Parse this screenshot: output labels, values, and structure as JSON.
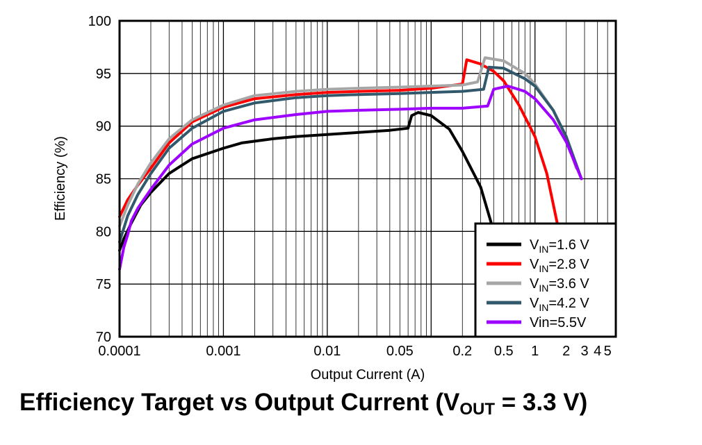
{
  "chart_data": {
    "type": "line",
    "xlabel": "Output Current (A)",
    "ylabel": "Efficiency (%)",
    "x_scale": "log",
    "xlim": [
      0.0001,
      6
    ],
    "ylim": [
      70,
      100
    ],
    "grid": true,
    "legend_placement": "bottom-right",
    "x_tick_labels": [
      {
        "value": 0.0001,
        "label": "0.0001"
      },
      {
        "value": 0.001,
        "label": "0.001"
      },
      {
        "value": 0.01,
        "label": "0.01"
      },
      {
        "value": 0.05,
        "label": "0.05"
      },
      {
        "value": 0.2,
        "label": "0.2"
      },
      {
        "value": 0.5,
        "label": "0.5"
      },
      {
        "value": 1,
        "label": "1"
      },
      {
        "value": 2,
        "label": "2"
      },
      {
        "value": 3,
        "label": "3"
      },
      {
        "value": 4,
        "label": "4"
      },
      {
        "value": 5,
        "label": "5"
      }
    ],
    "y_tick_labels": [
      "70",
      "75",
      "80",
      "85",
      "90",
      "95",
      "100"
    ],
    "y_ticks": [
      70,
      75,
      80,
      85,
      90,
      95,
      100
    ],
    "series": [
      {
        "name": "VIN=1.6 V",
        "legend": {
          "main": "V",
          "sub": "IN",
          "rest": "=1.6 V"
        },
        "color": "#000000",
        "points": [
          [
            0.0001,
            78.2
          ],
          [
            0.00011,
            79.3
          ],
          [
            0.00013,
            80.8
          ],
          [
            0.00016,
            82.5
          ],
          [
            0.0002,
            83.7
          ],
          [
            0.0003,
            85.5
          ],
          [
            0.0005,
            86.9
          ],
          [
            0.001,
            87.9
          ],
          [
            0.0015,
            88.4
          ],
          [
            0.003,
            88.8
          ],
          [
            0.005,
            89.0
          ],
          [
            0.01,
            89.2
          ],
          [
            0.02,
            89.4
          ],
          [
            0.04,
            89.6
          ],
          [
            0.06,
            89.8
          ],
          [
            0.065,
            91.0
          ],
          [
            0.075,
            91.3
          ],
          [
            0.1,
            91.0
          ],
          [
            0.15,
            89.7
          ],
          [
            0.2,
            87.6
          ],
          [
            0.3,
            84.2
          ],
          [
            0.4,
            80.0
          ]
        ]
      },
      {
        "name": "VIN=2.8 V",
        "legend": {
          "main": "V",
          "sub": "IN",
          "rest": "=2.8 V"
        },
        "color": "#ff0000",
        "points": [
          [
            0.0001,
            81.4
          ],
          [
            0.00012,
            83.0
          ],
          [
            0.00015,
            84.4
          ],
          [
            0.0002,
            86.0
          ],
          [
            0.0003,
            88.4
          ],
          [
            0.0005,
            90.4
          ],
          [
            0.001,
            91.8
          ],
          [
            0.002,
            92.6
          ],
          [
            0.005,
            93.0
          ],
          [
            0.01,
            93.2
          ],
          [
            0.02,
            93.3
          ],
          [
            0.05,
            93.4
          ],
          [
            0.1,
            93.6
          ],
          [
            0.2,
            94.0
          ],
          [
            0.22,
            96.3
          ],
          [
            0.3,
            95.9
          ],
          [
            0.4,
            95.2
          ],
          [
            0.5,
            94.3
          ],
          [
            0.7,
            92.0
          ],
          [
            1.0,
            89.0
          ],
          [
            1.3,
            85.5
          ],
          [
            1.7,
            80.0
          ]
        ]
      },
      {
        "name": "VIN=3.6 V",
        "legend": {
          "main": "V",
          "sub": "IN",
          "rest": "=3.6 V"
        },
        "color": "#a6a6a6",
        "points": [
          [
            0.0001,
            80.5
          ],
          [
            0.00012,
            82.5
          ],
          [
            0.00015,
            84.5
          ],
          [
            0.0002,
            86.5
          ],
          [
            0.0003,
            88.8
          ],
          [
            0.0005,
            90.6
          ],
          [
            0.001,
            92.0
          ],
          [
            0.002,
            92.9
          ],
          [
            0.005,
            93.3
          ],
          [
            0.01,
            93.5
          ],
          [
            0.02,
            93.6
          ],
          [
            0.05,
            93.7
          ],
          [
            0.1,
            93.8
          ],
          [
            0.2,
            93.9
          ],
          [
            0.28,
            94.2
          ],
          [
            0.33,
            96.5
          ],
          [
            0.5,
            96.2
          ],
          [
            0.8,
            95.0
          ],
          [
            1.0,
            94.0
          ],
          [
            1.5,
            91.5
          ],
          [
            2.0,
            88.8
          ],
          [
            2.5,
            86.0
          ]
        ]
      },
      {
        "name": "VIN=4.2 V",
        "legend": {
          "main": "V",
          "sub": "IN",
          "rest": "=4.2 V"
        },
        "color": "#31596b",
        "points": [
          [
            0.0001,
            79.0
          ],
          [
            0.00012,
            81.5
          ],
          [
            0.00015,
            83.5
          ],
          [
            0.0002,
            85.5
          ],
          [
            0.0003,
            87.9
          ],
          [
            0.0005,
            89.8
          ],
          [
            0.001,
            91.4
          ],
          [
            0.002,
            92.2
          ],
          [
            0.005,
            92.7
          ],
          [
            0.01,
            92.9
          ],
          [
            0.02,
            93.0
          ],
          [
            0.05,
            93.1
          ],
          [
            0.1,
            93.2
          ],
          [
            0.2,
            93.3
          ],
          [
            0.32,
            93.5
          ],
          [
            0.36,
            95.6
          ],
          [
            0.5,
            95.5
          ],
          [
            0.8,
            94.5
          ],
          [
            1.0,
            93.8
          ],
          [
            1.5,
            91.5
          ],
          [
            2.0,
            89.0
          ],
          [
            2.8,
            85.0
          ]
        ]
      },
      {
        "name": "Vin=5.5V",
        "legend": {
          "main": "Vin=5.5V",
          "sub": "",
          "rest": ""
        },
        "color": "#9e00ff",
        "points": [
          [
            0.0001,
            76.4
          ],
          [
            0.00011,
            78.5
          ],
          [
            0.00012,
            79.7
          ],
          [
            0.00013,
            81.0
          ],
          [
            0.00015,
            82.2
          ],
          [
            0.0002,
            84.0
          ],
          [
            0.0003,
            86.3
          ],
          [
            0.0005,
            88.3
          ],
          [
            0.001,
            89.8
          ],
          [
            0.002,
            90.6
          ],
          [
            0.005,
            91.1
          ],
          [
            0.01,
            91.4
          ],
          [
            0.02,
            91.5
          ],
          [
            0.05,
            91.6
          ],
          [
            0.1,
            91.7
          ],
          [
            0.2,
            91.7
          ],
          [
            0.35,
            91.9
          ],
          [
            0.4,
            93.5
          ],
          [
            0.55,
            93.8
          ],
          [
            0.8,
            93.3
          ],
          [
            1.0,
            92.6
          ],
          [
            1.5,
            90.6
          ],
          [
            2.0,
            88.5
          ],
          [
            2.8,
            85.0
          ]
        ]
      }
    ]
  },
  "caption": {
    "main": "Efficiency Target vs Output Current (V",
    "sub": "OUT",
    "rest": " = 3.3 V)"
  }
}
